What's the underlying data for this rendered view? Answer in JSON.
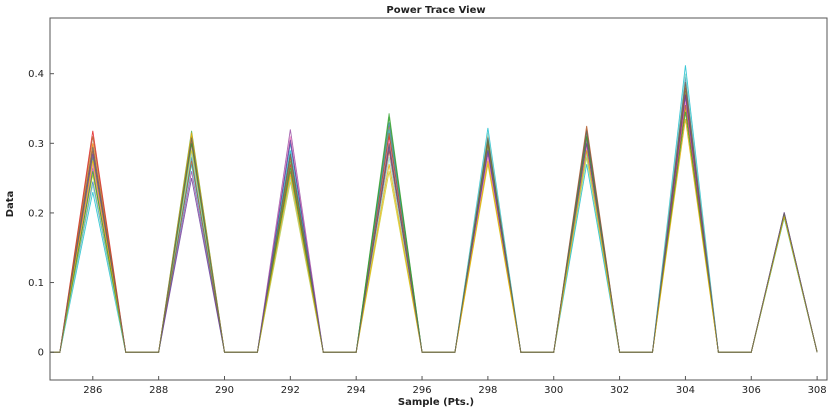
{
  "chart_data": {
    "type": "line",
    "title": "Power Trace View",
    "xlabel": "Sample (Pts.)",
    "ylabel": "Data",
    "xlim": [
      284.7,
      308.3
    ],
    "ylim": [
      -0.04,
      0.48
    ],
    "x_ticks": [
      "286",
      "288",
      "290",
      "292",
      "294",
      "296",
      "298",
      "300",
      "302",
      "304",
      "306",
      "308"
    ],
    "y_ticks": [
      "0",
      "0.1",
      "0.2",
      "0.3",
      "0.4"
    ],
    "grid": false,
    "legend": "none",
    "x": [
      284.7,
      285,
      286,
      287,
      288,
      289,
      290,
      291,
      292,
      293,
      294,
      295,
      296,
      297,
      298,
      299,
      300,
      301,
      302,
      303,
      304,
      305,
      306,
      307,
      308
    ],
    "series": [
      {
        "color": "#e41a1c",
        "values": [
          0,
          0,
          0.318,
          0,
          0,
          0.3,
          0,
          0,
          0.27,
          0,
          0,
          0.31,
          0,
          0,
          0.3,
          0,
          0,
          0.31,
          0,
          0,
          0.37,
          0,
          0,
          0.198,
          0
        ]
      },
      {
        "color": "#ff7f00",
        "values": [
          0,
          0,
          0.3,
          0,
          0,
          0.31,
          0,
          0,
          0.285,
          0,
          0,
          0.325,
          0,
          0,
          0.31,
          0,
          0,
          0.3,
          0,
          0,
          0.385,
          0,
          0,
          0.196,
          0
        ]
      },
      {
        "color": "#4daf4a",
        "values": [
          0,
          0,
          0.28,
          0,
          0,
          0.318,
          0,
          0,
          0.275,
          0,
          0,
          0.343,
          0,
          0,
          0.295,
          0,
          0,
          0.315,
          0,
          0,
          0.375,
          0,
          0,
          0.197,
          0
        ]
      },
      {
        "color": "#377eb8",
        "values": [
          0,
          0,
          0.245,
          0,
          0,
          0.28,
          0,
          0,
          0.3,
          0,
          0,
          0.33,
          0,
          0,
          0.29,
          0,
          0,
          0.29,
          0,
          0,
          0.395,
          0,
          0,
          0.195,
          0
        ]
      },
      {
        "color": "#984ea3",
        "values": [
          0,
          0,
          0.265,
          0,
          0,
          0.26,
          0,
          0,
          0.32,
          0,
          0,
          0.3,
          0,
          0,
          0.285,
          0,
          0,
          0.305,
          0,
          0,
          0.365,
          0,
          0,
          0.199,
          0
        ]
      },
      {
        "color": "#a65628",
        "values": [
          0,
          0,
          0.29,
          0,
          0,
          0.305,
          0,
          0,
          0.26,
          0,
          0,
          0.29,
          0,
          0,
          0.305,
          0,
          0,
          0.32,
          0,
          0,
          0.38,
          0,
          0,
          0.2,
          0
        ]
      },
      {
        "color": "#f781bf",
        "values": [
          0,
          0,
          0.27,
          0,
          0,
          0.295,
          0,
          0,
          0.31,
          0,
          0,
          0.305,
          0,
          0,
          0.28,
          0,
          0,
          0.295,
          0,
          0,
          0.36,
          0,
          0,
          0.197,
          0
        ]
      },
      {
        "color": "#cccc22",
        "values": [
          0,
          0,
          0.255,
          0,
          0,
          0.29,
          0,
          0,
          0.245,
          0,
          0,
          0.26,
          0,
          0,
          0.27,
          0,
          0,
          0.28,
          0,
          0,
          0.35,
          0,
          0,
          0.194,
          0
        ]
      },
      {
        "color": "#17becf",
        "values": [
          0,
          0,
          0.23,
          0,
          0,
          0.27,
          0,
          0,
          0.29,
          0,
          0,
          0.32,
          0,
          0,
          0.322,
          0,
          0,
          0.27,
          0,
          0,
          0.412,
          0,
          0,
          0.193,
          0
        ]
      },
      {
        "color": "#8dd3c7",
        "values": [
          0,
          0,
          0.24,
          0,
          0,
          0.285,
          0,
          0,
          0.25,
          0,
          0,
          0.28,
          0,
          0,
          0.315,
          0,
          0,
          0.285,
          0,
          0,
          0.4,
          0,
          0,
          0.195,
          0
        ]
      },
      {
        "color": "#b15928",
        "values": [
          0,
          0,
          0.31,
          0,
          0,
          0.275,
          0,
          0,
          0.28,
          0,
          0,
          0.315,
          0,
          0,
          0.3,
          0,
          0,
          0.325,
          0,
          0,
          0.355,
          0,
          0,
          0.199,
          0
        ]
      },
      {
        "color": "#6a3d9a",
        "values": [
          0,
          0,
          0.285,
          0,
          0,
          0.25,
          0,
          0,
          0.305,
          0,
          0,
          0.295,
          0,
          0,
          0.29,
          0,
          0,
          0.3,
          0,
          0,
          0.37,
          0,
          0,
          0.201,
          0
        ]
      },
      {
        "color": "#33a02c",
        "values": [
          0,
          0,
          0.26,
          0,
          0,
          0.3,
          0,
          0,
          0.265,
          0,
          0,
          0.338,
          0,
          0,
          0.305,
          0,
          0,
          0.31,
          0,
          0,
          0.345,
          0,
          0,
          0.196,
          0
        ]
      },
      {
        "color": "#e6ab02",
        "values": [
          0,
          0,
          0.275,
          0,
          0,
          0.315,
          0,
          0,
          0.255,
          0,
          0,
          0.27,
          0,
          0,
          0.275,
          0,
          0,
          0.29,
          0,
          0,
          0.335,
          0,
          0,
          0.195,
          0
        ]
      },
      {
        "color": "#666666",
        "values": [
          0,
          0,
          0.295,
          0,
          0,
          0.308,
          0,
          0,
          0.285,
          0,
          0,
          0.3,
          0,
          0,
          0.308,
          0,
          0,
          0.318,
          0,
          0,
          0.388,
          0,
          0,
          0.2,
          0
        ]
      }
    ]
  }
}
